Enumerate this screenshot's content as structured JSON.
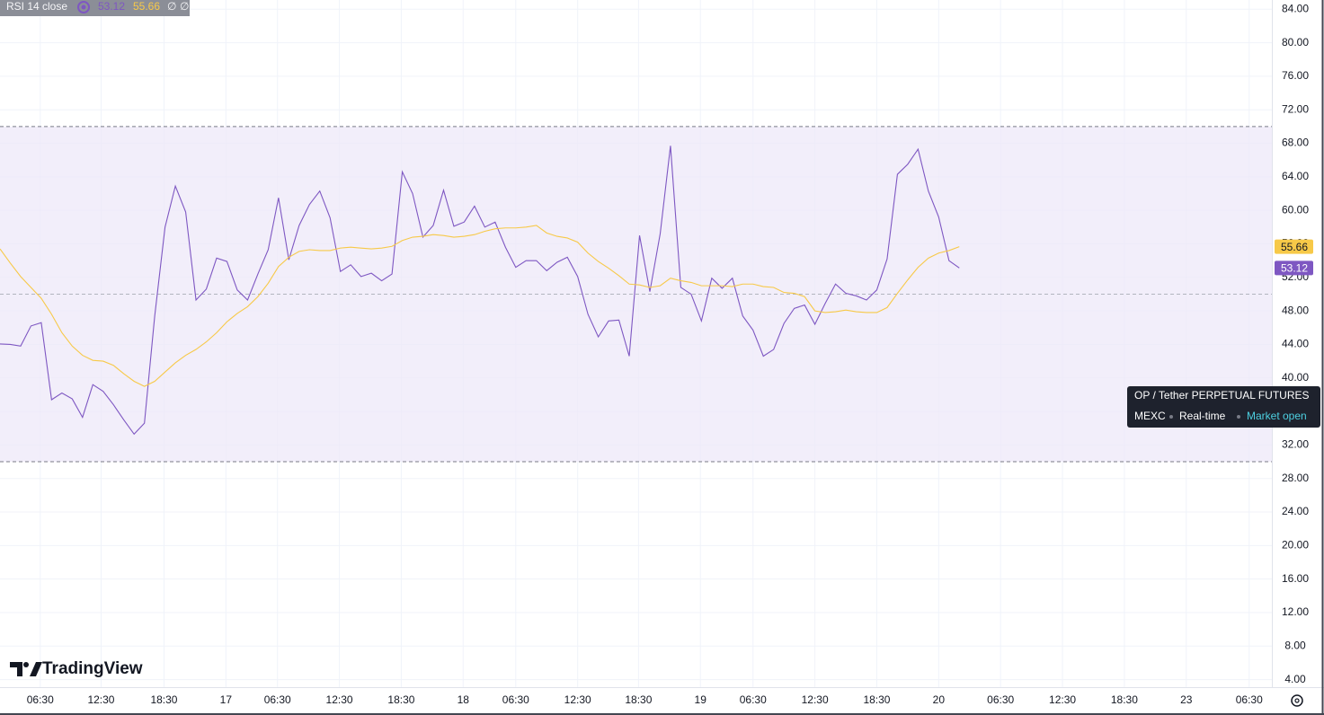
{
  "chart_data": {
    "type": "line",
    "legend_label": "RSI 14 close",
    "legend_na": [
      "∅",
      "∅"
    ],
    "watermark": "TradingView",
    "symbol_info": {
      "title": "OP / Tether PERPETUAL FUTURES",
      "exchange": "MEXC",
      "feed": "Real-time",
      "status": "Market open"
    },
    "series": [
      {
        "color": "#7e57c2",
        "values": [
          44.05,
          44.0,
          43.8,
          46.2,
          46.6,
          37.4,
          38.2,
          37.5,
          35.3,
          39.2,
          38.4,
          36.8,
          35.0,
          33.3,
          34.6,
          47.4,
          58.0,
          62.9,
          59.8,
          49.3,
          50.6,
          54.3,
          53.9,
          50.5,
          49.3,
          52.4,
          55.3,
          61.5,
          54.1,
          58.2,
          60.7,
          62.3,
          59.1,
          52.7,
          53.5,
          52.1,
          52.5,
          51.6,
          52.4,
          64.6,
          62.0,
          56.8,
          58.2,
          62.4,
          58.1,
          58.6,
          60.5,
          58.0,
          58.6,
          55.6,
          53.2,
          54.0,
          54.0,
          52.8,
          53.8,
          54.4,
          52.1,
          47.6,
          44.9,
          46.8,
          46.9,
          42.6,
          57.0,
          50.3,
          57.2,
          67.7,
          50.8,
          50.0,
          46.8,
          51.9,
          50.7,
          51.9,
          47.4,
          45.7,
          42.6,
          43.4,
          46.5,
          48.3,
          48.7,
          46.4,
          48.9,
          51.2,
          50.1,
          49.8,
          49.3,
          50.5,
          54.2,
          64.3,
          65.5,
          67.3,
          62.3,
          59.2,
          54.0,
          53.12
        ]
      },
      {
        "color": "#f7c948",
        "values": [
          55.4,
          53.7,
          52.1,
          50.8,
          49.5,
          47.6,
          45.4,
          43.8,
          42.7,
          42.1,
          42.0,
          41.5,
          40.5,
          39.6,
          39.0,
          39.6,
          40.7,
          41.8,
          42.7,
          43.4,
          44.3,
          45.4,
          46.7,
          47.7,
          48.5,
          49.7,
          51.3,
          53.3,
          54.4,
          55.1,
          55.3,
          55.2,
          55.2,
          55.5,
          55.6,
          55.5,
          55.4,
          55.5,
          55.7,
          56.4,
          56.8,
          56.9,
          57.1,
          57.0,
          56.8,
          56.9,
          57.1,
          57.5,
          57.8,
          57.9,
          57.9,
          58.0,
          58.2,
          57.3,
          56.9,
          56.7,
          56.2,
          54.9,
          53.9,
          53.1,
          52.2,
          51.2,
          51.1,
          50.8,
          51.0,
          51.9,
          51.6,
          51.4,
          51.0,
          51.0,
          51.0,
          50.9,
          51.2,
          51.2,
          50.9,
          50.8,
          50.2,
          50.1,
          49.7,
          48.0,
          47.8,
          47.9,
          48.1,
          47.9,
          47.8,
          47.8,
          48.4,
          50.1,
          51.7,
          53.2,
          54.3,
          54.9,
          55.2,
          55.66
        ]
      }
    ],
    "bands": {
      "upper": 70,
      "middle": 50,
      "lower": 30,
      "fill": "#ede8f8"
    },
    "xlim": [
      0,
      123.3
    ],
    "xticks": [
      {
        "value": 3.9,
        "label": "06:30"
      },
      {
        "value": 9.8,
        "label": "12:30"
      },
      {
        "value": 15.9,
        "label": "18:30"
      },
      {
        "value": 21.9,
        "label": "17"
      },
      {
        "value": 26.9,
        "label": "06:30"
      },
      {
        "value": 32.9,
        "label": "12:30"
      },
      {
        "value": 38.9,
        "label": "18:30"
      },
      {
        "value": 44.9,
        "label": "18"
      },
      {
        "value": 50.0,
        "label": "06:30"
      },
      {
        "value": 56.0,
        "label": "12:30"
      },
      {
        "value": 61.9,
        "label": "18:30"
      },
      {
        "value": 67.9,
        "label": "19"
      },
      {
        "value": 73.0,
        "label": "06:30"
      },
      {
        "value": 79.0,
        "label": "12:30"
      },
      {
        "value": 85.0,
        "label": "18:30"
      },
      {
        "value": 91.0,
        "label": "20"
      },
      {
        "value": 97.0,
        "label": "06:30"
      },
      {
        "value": 103.0,
        "label": "12:30"
      },
      {
        "value": 109.0,
        "label": "18:30"
      },
      {
        "value": 115.0,
        "label": "23"
      },
      {
        "value": 121.1,
        "label": "06:30"
      }
    ],
    "ylim": [
      3.1,
      85.1
    ],
    "yticks": [
      {
        "value": 4,
        "label": "4.00"
      },
      {
        "value": 8,
        "label": "8.00"
      },
      {
        "value": 12,
        "label": "12.00"
      },
      {
        "value": 16,
        "label": "16.00"
      },
      {
        "value": 20,
        "label": "20.00"
      },
      {
        "value": 24,
        "label": "24.00"
      },
      {
        "value": 28,
        "label": "28.00"
      },
      {
        "value": 32,
        "label": "32.00"
      },
      {
        "value": 36,
        "label": "36.00"
      },
      {
        "value": 40,
        "label": "40.00"
      },
      {
        "value": 44,
        "label": "44.00"
      },
      {
        "value": 48,
        "label": "48.00"
      },
      {
        "value": 52,
        "label": "52.00"
      },
      {
        "value": 56,
        "label": "56.00"
      },
      {
        "value": 60,
        "label": "60.00"
      },
      {
        "value": 64,
        "label": "64.00"
      },
      {
        "value": 68,
        "label": "68.00"
      },
      {
        "value": 72,
        "label": "72.00"
      },
      {
        "value": 76,
        "label": "76.00"
      },
      {
        "value": 80,
        "label": "80.00"
      },
      {
        "value": 84,
        "label": "84.00"
      }
    ],
    "grid": true
  }
}
